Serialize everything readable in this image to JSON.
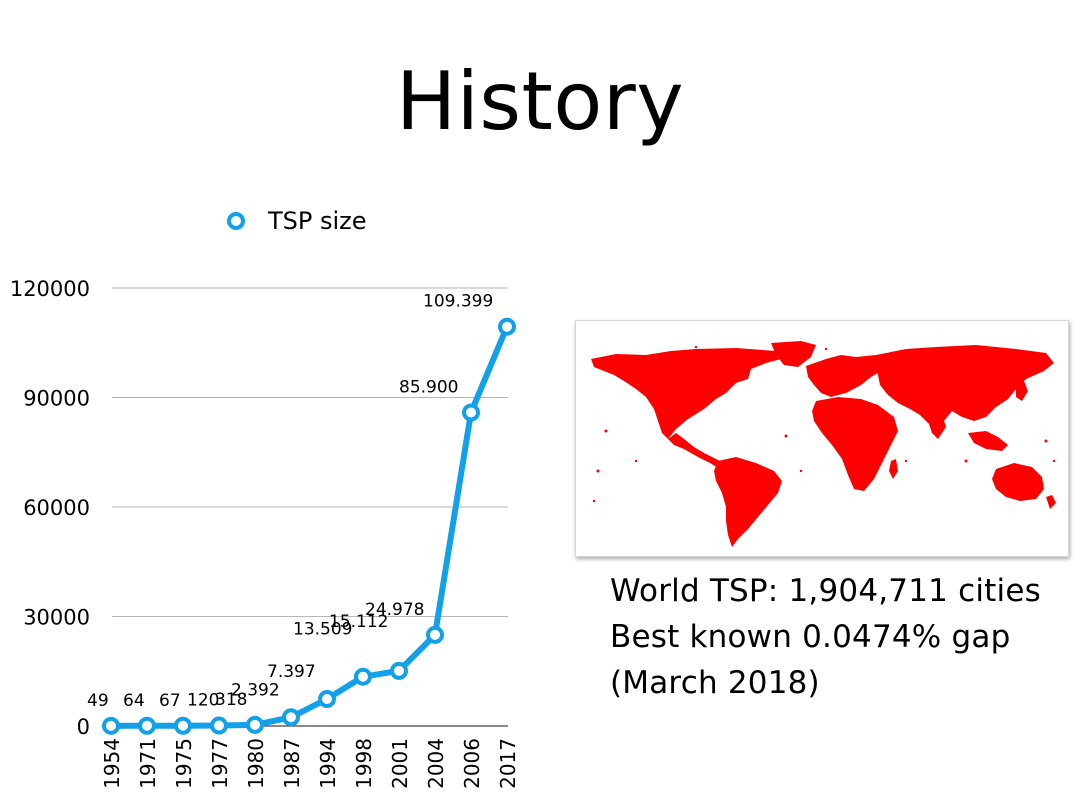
{
  "slide": {
    "title": "History",
    "caption": [
      "World TSP: 1,904,711 cities",
      "Best known 0.0474% gap",
      "(March 2018)"
    ]
  },
  "chart_data": {
    "type": "line",
    "title": "",
    "xlabel": "",
    "ylabel": "",
    "legend": {
      "label": "TSP size",
      "placement": "top"
    },
    "categories": [
      "1954",
      "1971",
      "1975",
      "1977",
      "1980",
      "1987",
      "1994",
      "1998",
      "2001",
      "2004",
      "2006",
      "2017"
    ],
    "series": [
      {
        "name": "TSP size",
        "color": "#12a0e8",
        "values": [
          49,
          64,
          67,
          120,
          318,
          2392,
          7397,
          13509,
          15112,
          24978,
          85900,
          109399
        ],
        "labels": [
          "49",
          "64",
          "67",
          "120",
          "318",
          "2.392",
          "7.397",
          "13.509",
          "15.112",
          "24.978",
          "85.900",
          "109.399"
        ]
      }
    ],
    "ylim": [
      0,
      120000
    ],
    "yticks": [
      "0",
      "30000",
      "60000",
      "90000",
      "120000"
    ],
    "grid": true
  },
  "map": {
    "color": "#ff0000",
    "description_icon": "world-map-icon"
  }
}
